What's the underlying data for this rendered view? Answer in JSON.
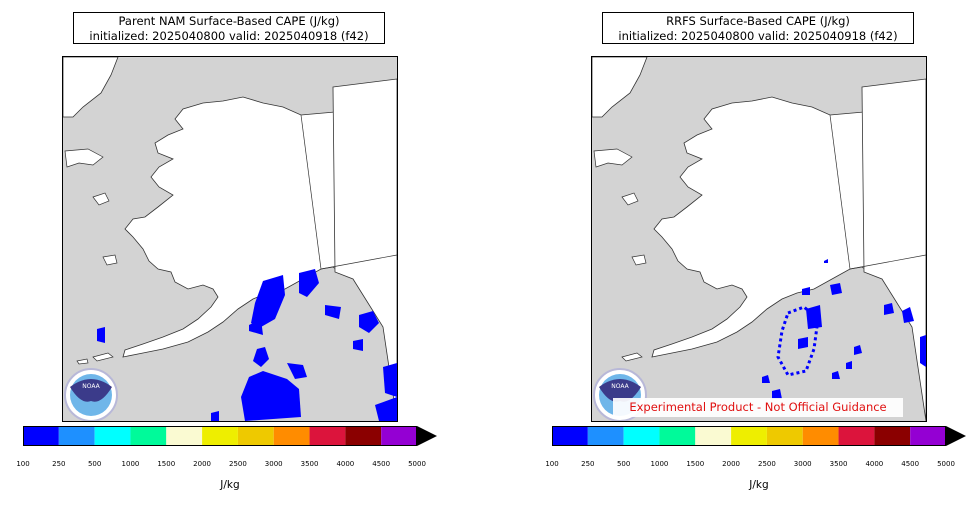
{
  "left_panel": {
    "title_line1": "Parent NAM Surface-Based CAPE (J/kg)",
    "title_line2": "initialized: 2025040800 valid: 2025040918 (f42)"
  },
  "right_panel": {
    "title_line1": "RRFS Surface-Based CAPE (J/kg)",
    "title_line2": "initialized: 2025040800 valid: 2025040918 (f42)"
  },
  "logo_text": "NOAA",
  "colorbar": {
    "unit_label": "J/kg",
    "ticks": [
      "100",
      "250",
      "500",
      "1000",
      "1500",
      "2000",
      "2500",
      "3000",
      "3500",
      "4000",
      "4500",
      "5000"
    ],
    "colors": [
      "#0000ff",
      "#1e90ff",
      "#00ffff",
      "#00fa9a",
      "#fafad2",
      "#eeee00",
      "#eec900",
      "#ff8c00",
      "#dc143c",
      "#8b0000",
      "#9400d3"
    ],
    "extend_color": "#000000"
  },
  "watermark": "Experimental Product - Not Official Guidance",
  "colors": {
    "land": "#ffffff",
    "water": "#d3d3d3",
    "cape_low": "#0000ff",
    "watermark_text": "#e01010"
  }
}
